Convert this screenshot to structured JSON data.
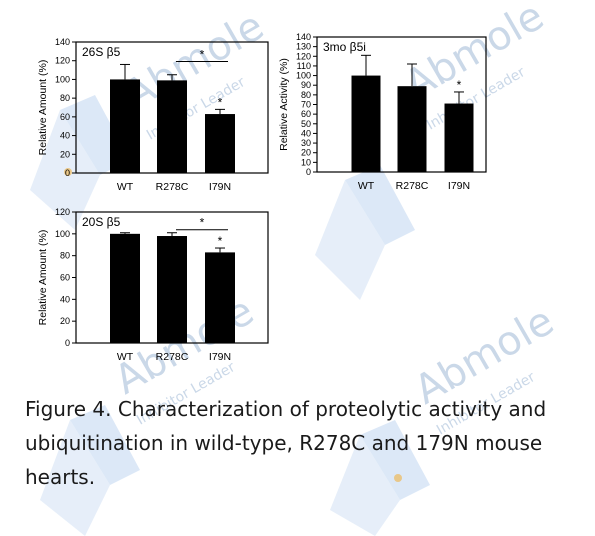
{
  "watermark": {
    "brand": "Abmole",
    "tagline": "Inhibitor Leader"
  },
  "chart_data": [
    {
      "id": "top-left",
      "type": "bar",
      "title": "26S β5",
      "ylabel": "Relative Amount (%)",
      "xlabel": "",
      "categories": [
        "WT",
        "R278C",
        "I79N"
      ],
      "values": [
        100,
        99,
        63
      ],
      "errors": [
        16,
        6,
        5
      ],
      "significance_stars": [
        "",
        "",
        "*"
      ],
      "bracket": {
        "from": "R278C",
        "to": "I79N",
        "label": "*"
      },
      "ylim": [
        0,
        140
      ],
      "yticks": [
        "0",
        "20",
        "40",
        "60",
        "80",
        "100",
        "120",
        "140"
      ],
      "bar_color": "#000000",
      "grid": false
    },
    {
      "id": "top-right",
      "type": "bar",
      "title": "3mo β5i",
      "ylabel": "Relative Activity (%)",
      "xlabel": "",
      "categories": [
        "WT",
        "R278C",
        "I79N"
      ],
      "values": [
        100,
        89,
        71
      ],
      "errors": [
        21,
        23,
        12
      ],
      "significance_stars": [
        "",
        "",
        "*"
      ],
      "bracket": null,
      "ylim": [
        0,
        140
      ],
      "yticks": [
        "0",
        "10",
        "20",
        "30",
        "40",
        "50",
        "60",
        "70",
        "80",
        "90",
        "100",
        "110",
        "120",
        "130",
        "140"
      ],
      "bar_color": "#000000",
      "grid": false
    },
    {
      "id": "bottom-left",
      "type": "bar",
      "title": "20S β5",
      "ylabel": "Relative Amount (%)",
      "xlabel": "",
      "categories": [
        "WT",
        "R278C",
        "I79N"
      ],
      "values": [
        100,
        98,
        83
      ],
      "errors": [
        1,
        3,
        4
      ],
      "significance_stars": [
        "",
        "",
        "*"
      ],
      "bracket": {
        "from": "R278C",
        "to": "I79N",
        "label": "*"
      },
      "ylim": [
        0,
        120
      ],
      "yticks": [
        "0",
        "20",
        "40",
        "60",
        "80",
        "100",
        "120"
      ],
      "bar_color": "#000000",
      "grid": false
    }
  ],
  "caption": {
    "lines": [
      "Figure 4. Characterization of proteolytic activity and",
      "ubiquitination in wild-type, R278C and 179N mouse",
      "hearts."
    ]
  }
}
